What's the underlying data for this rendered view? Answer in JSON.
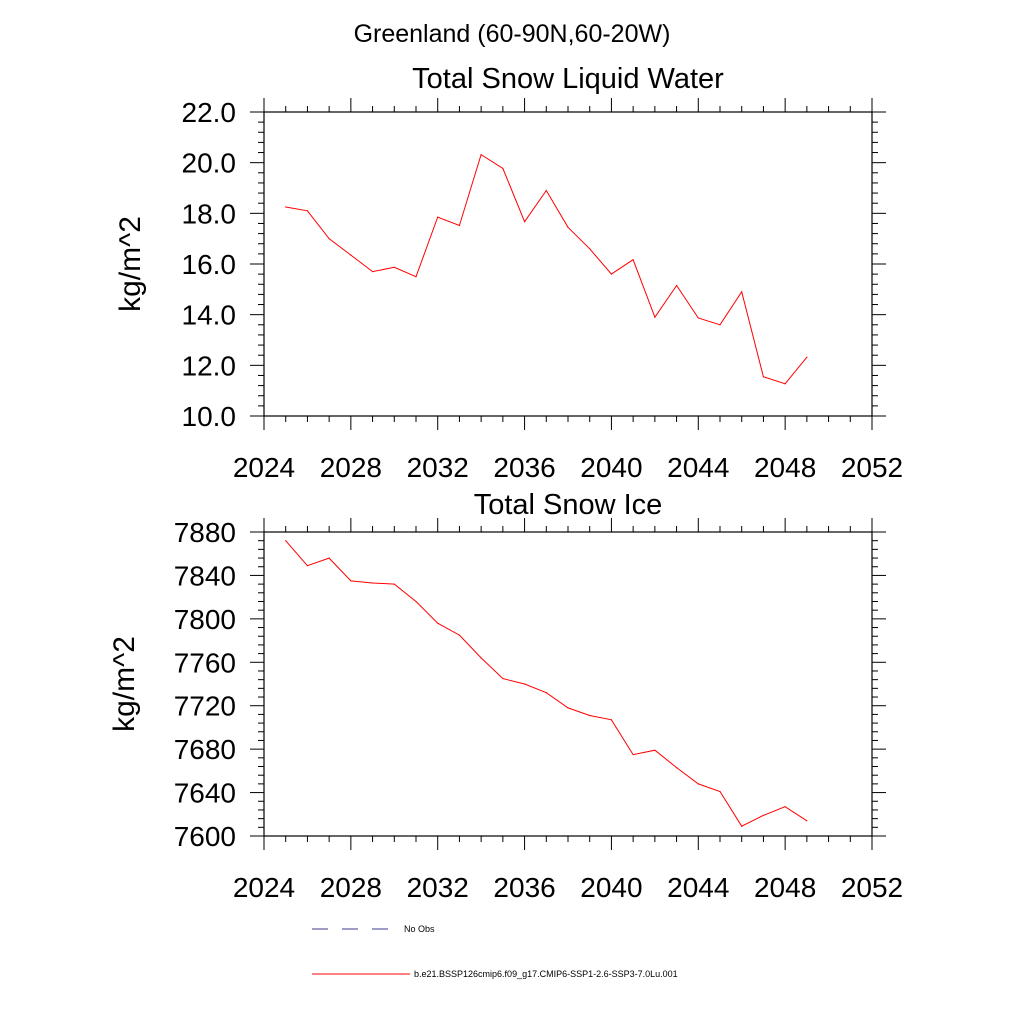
{
  "figure": {
    "suptitle": "Greenland (60-90N,60-20W)"
  },
  "legend": {
    "placement": "bottom",
    "entries": [
      {
        "label": "No Obs",
        "color": "#3b3b8f",
        "style": "dashed"
      },
      {
        "label": "b.e21.BSSP126cmip6.f09_g17.CMIP6-SSP1-2.6-SSP3-7.0Lu.001",
        "color": "#ff0000",
        "style": "solid"
      }
    ]
  },
  "chart_data": [
    {
      "type": "line",
      "title": "Total Snow Liquid Water",
      "ylabel": "kg/m^2",
      "xlim": [
        2024,
        2052
      ],
      "ylim": [
        10,
        22
      ],
      "x_ticks": [
        2024,
        2028,
        2032,
        2036,
        2040,
        2044,
        2048,
        2052
      ],
      "y_ticks": [
        10,
        12,
        14,
        16,
        18,
        20,
        22
      ],
      "y_tick_labels": [
        "10.0",
        "12.0",
        "14.0",
        "16.0",
        "18.0",
        "20.0",
        "22.0"
      ],
      "grid": false,
      "series": [
        {
          "name": "b.e21.BSSP126cmip6.f09_g17.CMIP6-SSP1-2.6-SSP3-7.0Lu.001",
          "color": "#ff0000",
          "x": [
            2025,
            2026,
            2027,
            2028,
            2029,
            2030,
            2031,
            2032,
            2033,
            2034,
            2035,
            2036,
            2037,
            2038,
            2039,
            2040,
            2041,
            2042,
            2043,
            2044,
            2045,
            2046,
            2047,
            2048,
            2049
          ],
          "values": [
            18.25,
            18.1,
            17.0,
            16.35,
            15.7,
            15.87,
            15.5,
            17.85,
            17.52,
            20.32,
            19.77,
            17.67,
            18.9,
            17.45,
            16.6,
            15.6,
            16.17,
            13.9,
            15.15,
            13.87,
            13.6,
            14.9,
            11.55,
            11.27,
            12.32
          ]
        }
      ]
    },
    {
      "type": "line",
      "title": "Total Snow Ice",
      "ylabel": "kg/m^2",
      "xlim": [
        2024,
        2052
      ],
      "ylim": [
        7600,
        7880
      ],
      "x_ticks": [
        2024,
        2028,
        2032,
        2036,
        2040,
        2044,
        2048,
        2052
      ],
      "y_ticks": [
        7600,
        7640,
        7680,
        7720,
        7760,
        7800,
        7840,
        7880
      ],
      "y_tick_labels": [
        "7600",
        "7640",
        "7680",
        "7720",
        "7760",
        "7800",
        "7840",
        "7880"
      ],
      "grid": false,
      "series": [
        {
          "name": "b.e21.BSSP126cmip6.f09_g17.CMIP6-SSP1-2.6-SSP3-7.0Lu.001",
          "color": "#ff0000",
          "x": [
            2025,
            2026,
            2027,
            2028,
            2029,
            2030,
            2031,
            2032,
            2033,
            2034,
            2035,
            2036,
            2037,
            2038,
            2039,
            2040,
            2041,
            2042,
            2043,
            2044,
            2045,
            2046,
            2047,
            2048,
            2049
          ],
          "values": [
            7872,
            7849,
            7856,
            7835,
            7833,
            7832,
            7816,
            7796,
            7785,
            7764,
            7745,
            7740,
            7732,
            7718,
            7711,
            7707,
            7675,
            7679,
            7663,
            7648,
            7641,
            7609,
            7619,
            7627,
            7614
          ]
        }
      ]
    }
  ]
}
